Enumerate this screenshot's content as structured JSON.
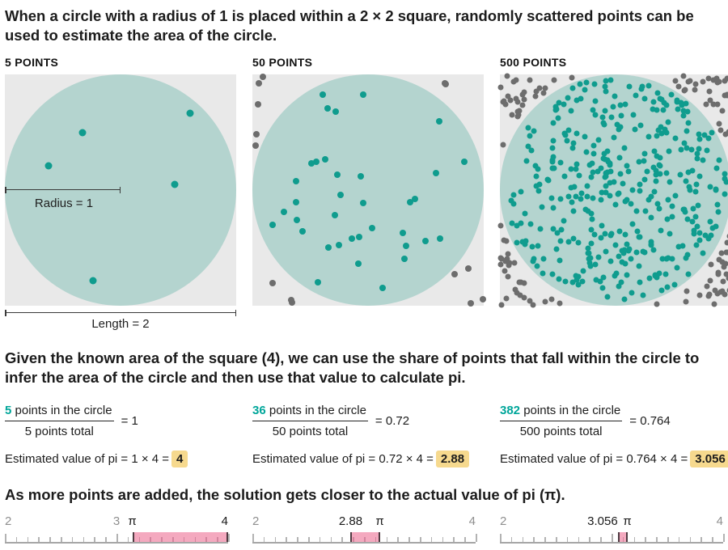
{
  "intro": "When a circle with a radius of 1 is placed within a 2 × 2 square, randomly scattered points can be used to estimate the area of the circle.",
  "explain": "Given the known area of the square (4), we can use the share of points that fall within the circle to infer the area of the circle and then use that value to calculate pi.",
  "conclusion": "As more points are added, the solution gets closer to the actual value of pi (π).",
  "panels": [
    {
      "title": "5 POINTS",
      "inside": 5,
      "outside": 0,
      "dot_size": 9,
      "seed": 11,
      "points": [
        [
          0.8,
          0.166
        ],
        [
          0.335,
          0.251
        ],
        [
          0.188,
          0.395
        ],
        [
          0.734,
          0.475
        ],
        [
          0.382,
          0.893
        ]
      ],
      "radius_label": "Radius = 1",
      "length_label": "Length = 2"
    },
    {
      "title": "50 POINTS",
      "inside": 36,
      "outside": 14,
      "dot_size": 8,
      "seed": 2024
    },
    {
      "title": "500 POINTS",
      "inside": 382,
      "outside": 118,
      "dot_size": 7,
      "seed": 99
    }
  ],
  "calcs": [
    {
      "numerator_value": "5",
      "numerator_label": "points in the circle",
      "denominator": "5 points total",
      "ratio": "= 1",
      "estimate_prefix": "Estimated value of pi = 1 × 4 =",
      "estimate_value": "4"
    },
    {
      "numerator_value": "36",
      "numerator_label": "points in the circle",
      "denominator": "50 points total",
      "ratio": "= 0.72",
      "estimate_prefix": "Estimated value of pi = 0.72 × 4 =",
      "estimate_value": "2.88"
    },
    {
      "numerator_value": "382",
      "numerator_label": "points in the circle",
      "denominator": "500 points total",
      "ratio": "= 0.764",
      "estimate_prefix": "Estimated value of pi = 0.764 × 4 =",
      "estimate_value": "3.056"
    }
  ],
  "number_lines": [
    {
      "min": 2,
      "max": 4,
      "tick_step": 0.1,
      "band": [
        3.1416,
        4
      ],
      "labels": [
        {
          "value": 2,
          "text": "2",
          "tone": "muted",
          "anchor": "left"
        },
        {
          "value": 3,
          "text": "3",
          "tone": "muted",
          "anchor": "center"
        },
        {
          "value": 3.1416,
          "text": "π",
          "tone": "dark",
          "anchor": "center"
        },
        {
          "value": 4,
          "text": "4",
          "tone": "dark",
          "anchor": "right"
        }
      ]
    },
    {
      "min": 2,
      "max": 4,
      "tick_step": 0.1,
      "band": [
        2.88,
        3.1416
      ],
      "labels": [
        {
          "value": 2,
          "text": "2",
          "tone": "muted",
          "anchor": "left"
        },
        {
          "value": 2.88,
          "text": "2.88",
          "tone": "dark",
          "anchor": "center"
        },
        {
          "value": 3.1416,
          "text": "π",
          "tone": "dark",
          "anchor": "center"
        },
        {
          "value": 4,
          "text": "4",
          "tone": "muted",
          "anchor": "right"
        }
      ]
    },
    {
      "min": 2,
      "max": 4,
      "tick_step": 0.1,
      "band": [
        3.056,
        3.1416
      ],
      "labels": [
        {
          "value": 2,
          "text": "2",
          "tone": "muted",
          "anchor": "left"
        },
        {
          "value": 3.056,
          "text": "3.056",
          "tone": "dark",
          "anchor": "right"
        },
        {
          "value": 3.1416,
          "text": "π",
          "tone": "dark",
          "anchor": "center"
        },
        {
          "value": 4,
          "text": "4",
          "tone": "muted",
          "anchor": "right"
        }
      ]
    }
  ],
  "colors": {
    "teal_dot": "#0f9c8e",
    "teal_text": "#00a69a",
    "gray_dot": "#6d6d6d",
    "circle_fill": "#b4d4cf",
    "square_fill": "#e9e9e9",
    "highlight": "#f6d98e",
    "band_fill": "#f4a9bf",
    "band_edge": "#4f3b42",
    "band_tick": "#d2849d",
    "text_dark": "#1c1c1c",
    "text_muted": "#8f8f8f"
  }
}
